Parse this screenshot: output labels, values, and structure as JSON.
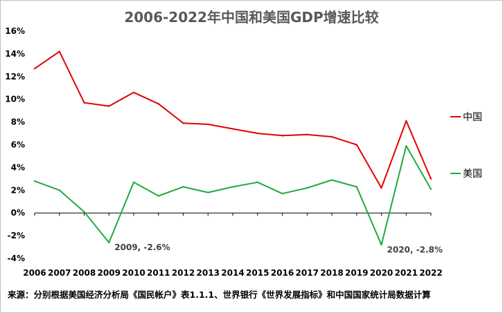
{
  "chart_data": {
    "type": "line",
    "title": "2006-2022年中国和美国GDP增速比较",
    "categories": [
      "2006",
      "2007",
      "2008",
      "2009",
      "2010",
      "2011",
      "2012",
      "2013",
      "2014",
      "2015",
      "2016",
      "2017",
      "2018",
      "2019",
      "2020",
      "2021",
      "2022"
    ],
    "series": [
      {
        "name": "中国",
        "color": "#e00000",
        "values": [
          12.7,
          14.2,
          9.7,
          9.4,
          10.6,
          9.6,
          7.9,
          7.8,
          7.4,
          7.0,
          6.8,
          6.9,
          6.7,
          6.0,
          2.2,
          8.1,
          3.0
        ]
      },
      {
        "name": "美国",
        "color": "#1faa3c",
        "values": [
          2.8,
          2.0,
          0.1,
          -2.6,
          2.7,
          1.5,
          2.3,
          1.8,
          2.3,
          2.7,
          1.7,
          2.2,
          2.9,
          2.3,
          -2.8,
          5.9,
          2.1
        ]
      }
    ],
    "ylim": [
      -4,
      16
    ],
    "yticks": [
      "-4%",
      "-2%",
      "0%",
      "2%",
      "4%",
      "6%",
      "8%",
      "10%",
      "12%",
      "14%",
      "16%"
    ],
    "ytick_values": [
      -4,
      -2,
      0,
      2,
      4,
      6,
      8,
      10,
      12,
      14,
      16
    ],
    "xlabel": "",
    "ylabel": "",
    "grid": false,
    "legend_position": "right",
    "annotations": [
      {
        "text": "2009, -2.6%",
        "series": "美国",
        "category": "2009"
      },
      {
        "text": "2020, -2.8%",
        "series": "美国",
        "category": "2020"
      }
    ]
  },
  "footer": {
    "source": "来源：分别根据美国经济分析局《国民帐户》表1.1.1、世界银行《世界发展指标》和中国国家统计局数据计算"
  }
}
